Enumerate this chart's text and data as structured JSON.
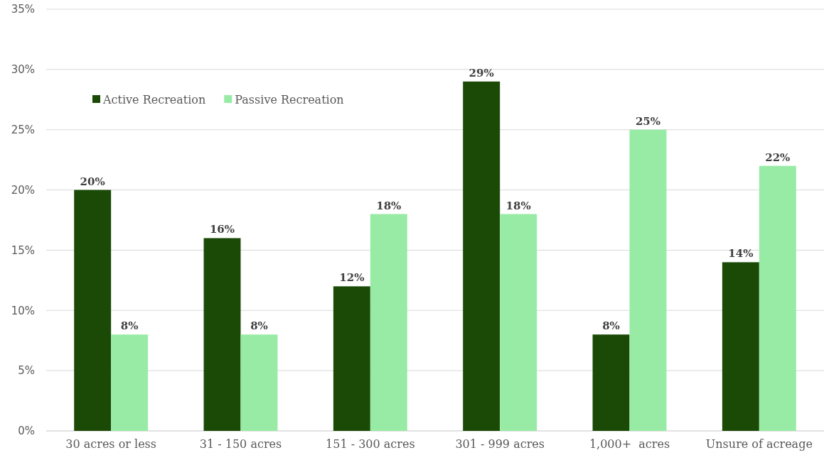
{
  "chart_data": {
    "type": "bar",
    "categories": [
      "30 acres or less",
      "31 - 150 acres",
      "151 - 300 acres",
      "301 - 999 acres",
      "1,000+  acres",
      "Unsure of acreage"
    ],
    "series": [
      {
        "name": "Active Recreation",
        "color": "#1a4a06",
        "values": [
          20,
          16,
          12,
          29,
          8,
          14
        ],
        "value_labels": [
          "20%",
          "16%",
          "12%",
          "29%",
          "8%",
          "14%"
        ]
      },
      {
        "name": "Passive Recreation",
        "color": "#98eba4",
        "values": [
          8,
          8,
          18,
          18,
          25,
          22
        ],
        "value_labels": [
          "8%",
          "8%",
          "18%",
          "18%",
          "25%",
          "22%"
        ]
      }
    ],
    "ylim": [
      0,
      35
    ],
    "yticks": [
      {
        "value": 0,
        "label": "0%"
      },
      {
        "value": 5,
        "label": "5%"
      },
      {
        "value": 10,
        "label": "10%"
      },
      {
        "value": 15,
        "label": "15%"
      },
      {
        "value": 20,
        "label": "20%"
      },
      {
        "value": 25,
        "label": "25%"
      },
      {
        "value": 30,
        "label": "30%"
      },
      {
        "value": 35,
        "label": "35%"
      }
    ],
    "grid": "y",
    "legend": "top left"
  }
}
